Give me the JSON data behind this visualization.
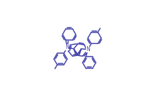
{
  "bg_color": "#ffffff",
  "line_color": "#4444aa",
  "lw": 1.1,
  "figsize": [
    2.24,
    1.58
  ],
  "dpi": 100,
  "BL": 0.052
}
